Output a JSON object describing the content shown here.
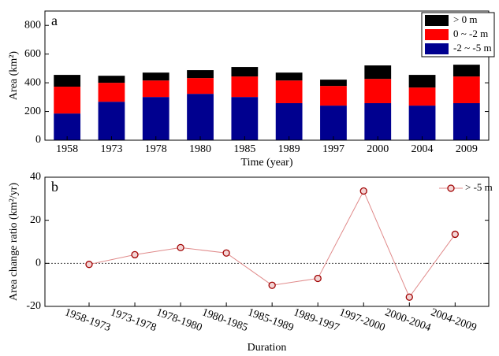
{
  "chart_data": [
    {
      "type": "stacked_bar",
      "label": "a",
      "xlabel": "Time (year)",
      "ylabel": "Area (km²)",
      "categories": [
        "1958",
        "1973",
        "1978",
        "1980",
        "1985",
        "1989",
        "1997",
        "2000",
        "2004",
        "2009"
      ],
      "series": [
        {
          "name": "-2 ~ -5 m",
          "color": "#00008f",
          "values": [
            186,
            268,
            301,
            323,
            301,
            258,
            241,
            258,
            241,
            258
          ]
        },
        {
          "name": "0 ~ -2 m",
          "color": "#ff0000",
          "values": [
            187,
            132,
            115,
            110,
            143,
            158,
            137,
            169,
            126,
            186
          ]
        },
        {
          "name": "> 0 m",
          "color": "#000000",
          "values": [
            82,
            49,
            55,
            55,
            66,
            55,
            44,
            94,
            88,
            82
          ]
        }
      ],
      "ylim": [
        0,
        900
      ],
      "yticks": [
        0,
        200,
        400,
        600,
        800
      ],
      "legend": "upper right"
    },
    {
      "type": "line",
      "label": "b",
      "xlabel": "Duration",
      "ylabel": "Area change ratio (km²/yr)",
      "categories": [
        "1958-1973",
        "1973-1978",
        "1978-1980",
        "1980-1985",
        "1985-1989",
        "1989-1997",
        "1997-2000",
        "2000-2004",
        "2004-2009"
      ],
      "series": [
        {
          "name": "> -5 m",
          "color": "#e08a8a",
          "marker_color": "#a00000",
          "values": [
            -0.5,
            4,
            7.3,
            4.8,
            -10.2,
            -7,
            33.6,
            -15.7,
            13.5
          ]
        }
      ],
      "ylim": [
        -20,
        40
      ],
      "yticks": [
        -20,
        0,
        20,
        40
      ],
      "zero_line": true,
      "legend": "upper right"
    }
  ]
}
